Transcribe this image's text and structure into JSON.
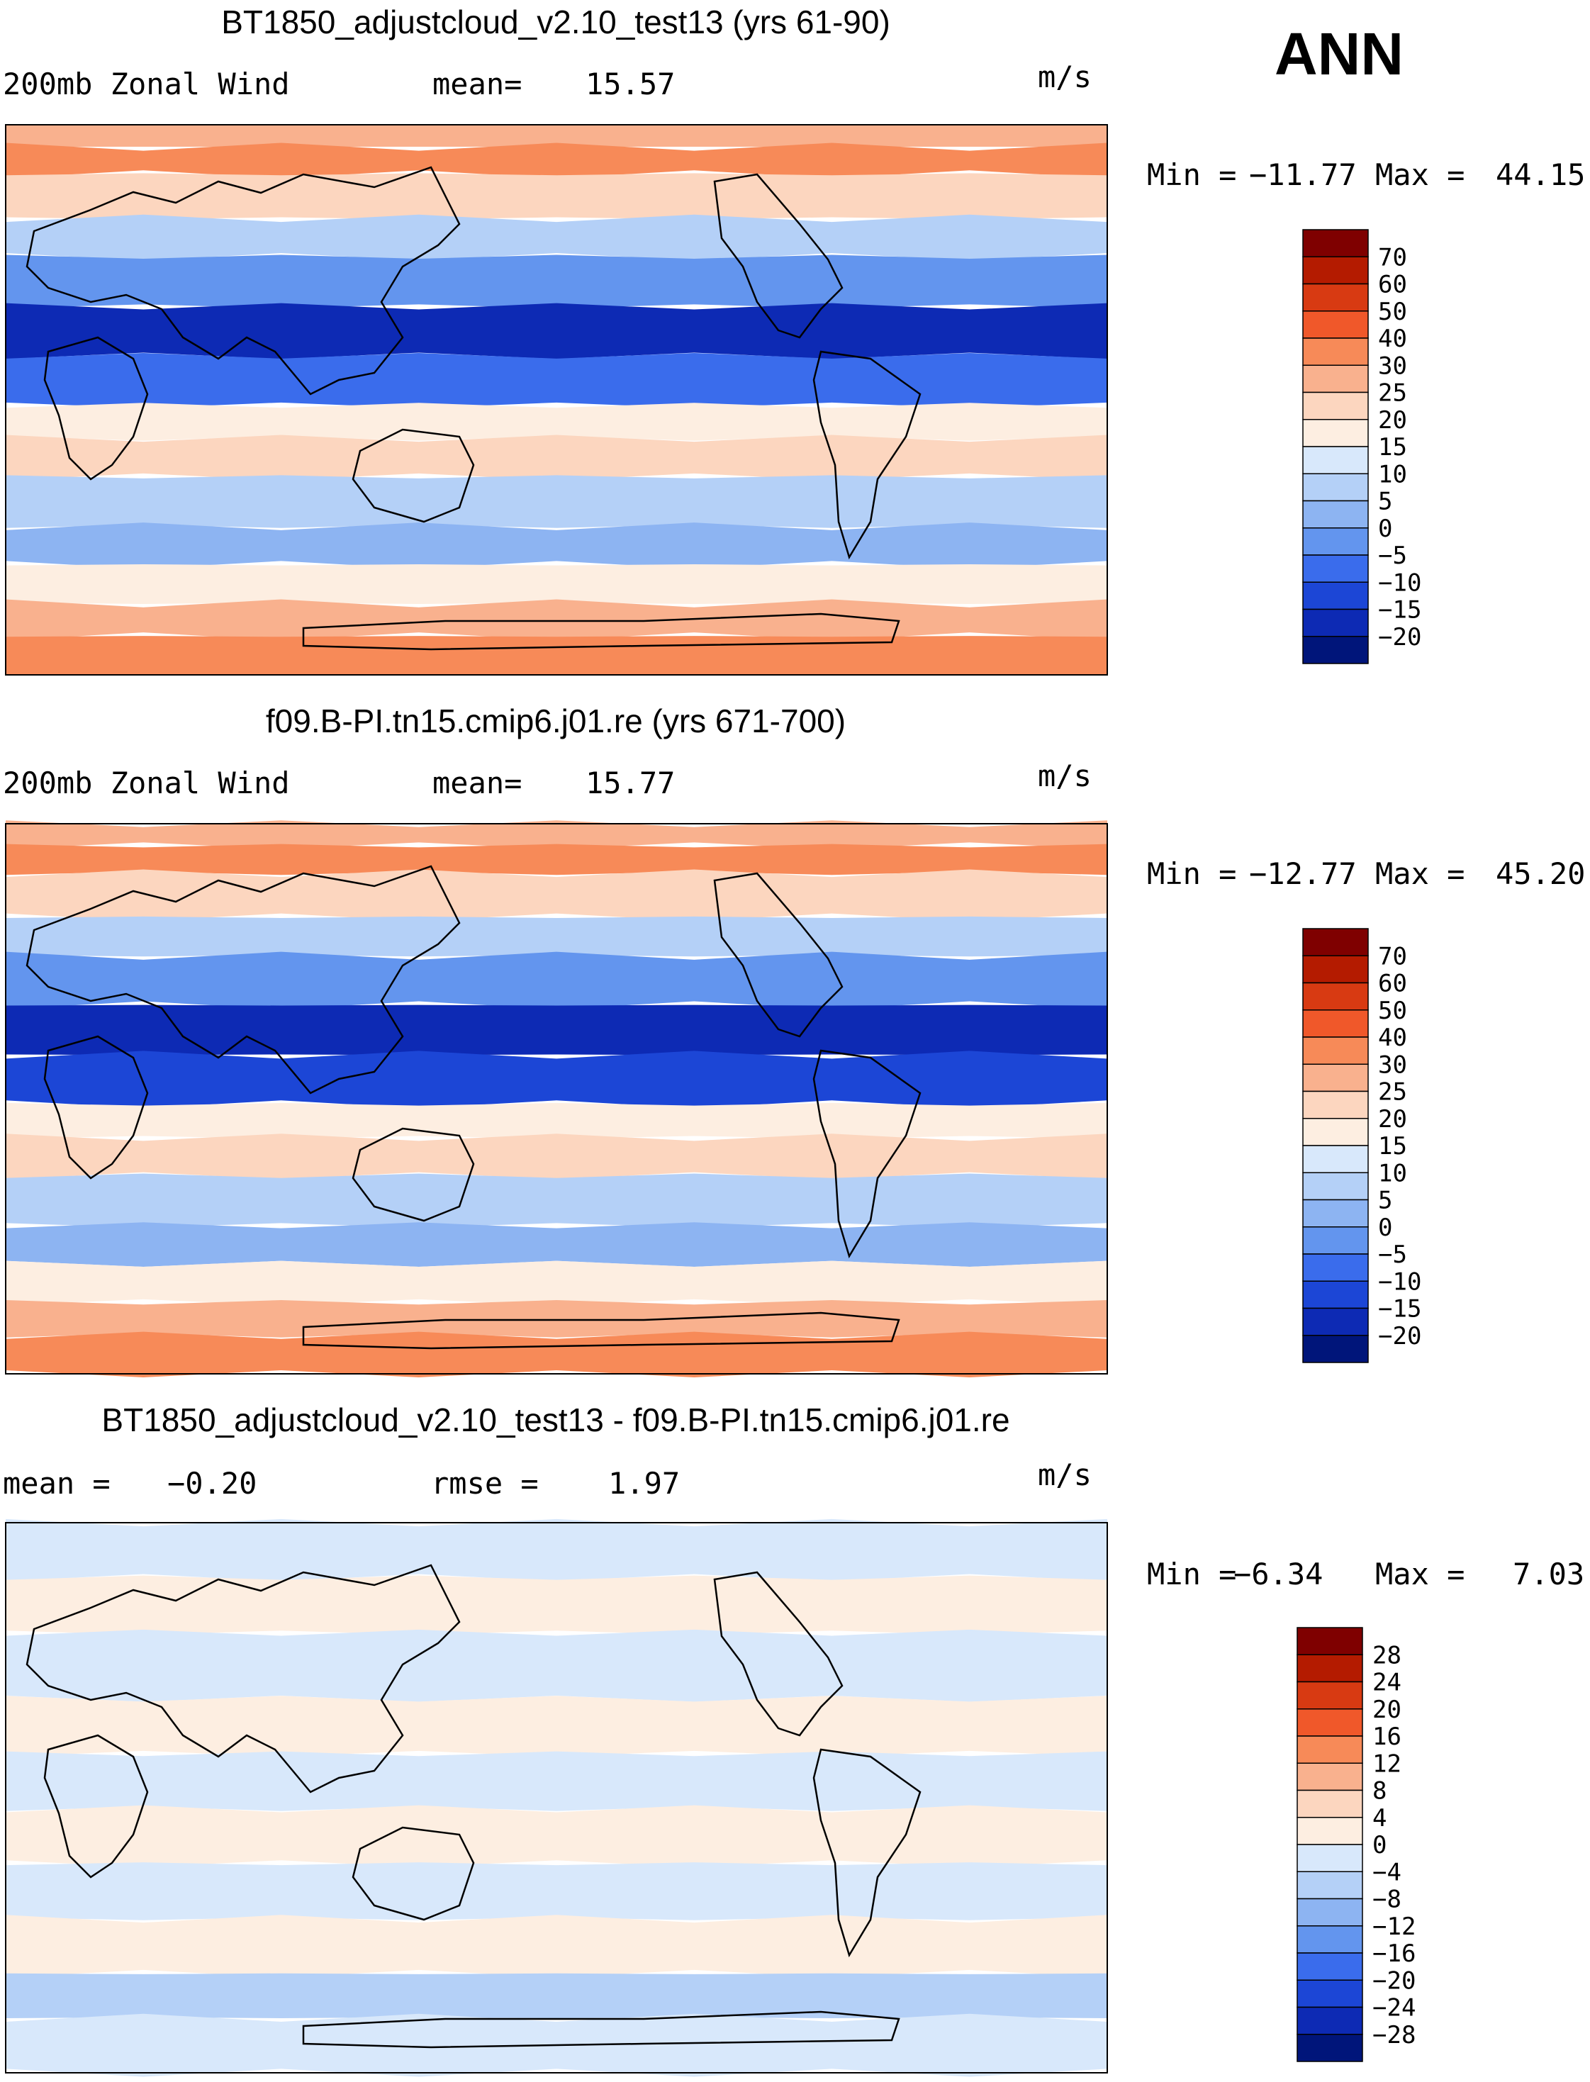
{
  "season": "ANN",
  "chart_data": [
    {
      "type": "heatmap",
      "title": "BT1850_adjustcloud_v2.10_test13 (yrs 61-90)",
      "variable": "200mb Zonal Wind",
      "stat_label": "mean=",
      "stat_value": "15.57",
      "units": "m/s",
      "min_label": "Min =",
      "min_value": "−11.77",
      "max_label": "Max =",
      "max_value": "44.15",
      "levels": [
        "70",
        "60",
        "50",
        "40",
        "30",
        "25",
        "20",
        "15",
        "10",
        "5",
        "0",
        "−5",
        "−10",
        "−15",
        "−20"
      ],
      "colors": [
        "#7f0000",
        "#b41b00",
        "#d83a12",
        "#f0582a",
        "#f78a58",
        "#f9b18e",
        "#fcd6bf",
        "#fdeee1",
        "#d8e8fb",
        "#b4d0f7",
        "#8db4f2",
        "#6395ee",
        "#3a6cec",
        "#1c46d6",
        "#0d2ab4",
        "#00157a"
      ],
      "bands": [
        [
          0,
          5
        ],
        [
          0.04,
          4
        ],
        [
          0.09,
          6
        ],
        [
          0.17,
          9
        ],
        [
          0.24,
          11
        ],
        [
          0.33,
          14
        ],
        [
          0.42,
          12
        ],
        [
          0.51,
          7
        ],
        [
          0.57,
          6
        ],
        [
          0.64,
          9
        ],
        [
          0.73,
          10
        ],
        [
          0.8,
          7
        ],
        [
          0.87,
          5
        ],
        [
          0.93,
          4
        ],
        [
          1,
          3
        ]
      ]
    },
    {
      "type": "heatmap",
      "title": "f09.B-PI.tn15.cmip6.j01.re (yrs 671-700)",
      "variable": "200mb Zonal Wind",
      "stat_label": "mean=",
      "stat_value": "15.77",
      "units": "m/s",
      "min_label": "Min =",
      "min_value": "−12.77",
      "max_label": "Max =",
      "max_value": "45.20",
      "levels": [
        "70",
        "60",
        "50",
        "40",
        "30",
        "25",
        "20",
        "15",
        "10",
        "5",
        "0",
        "−5",
        "−10",
        "−15",
        "−20"
      ],
      "colors": [
        "#7f0000",
        "#b41b00",
        "#d83a12",
        "#f0582a",
        "#f78a58",
        "#f9b18e",
        "#fcd6bf",
        "#fdeee1",
        "#d8e8fb",
        "#b4d0f7",
        "#8db4f2",
        "#6395ee",
        "#3a6cec",
        "#1c46d6",
        "#0d2ab4",
        "#00157a"
      ],
      "bands": [
        [
          0,
          5
        ],
        [
          0.04,
          4
        ],
        [
          0.09,
          6
        ],
        [
          0.17,
          9
        ],
        [
          0.24,
          11
        ],
        [
          0.33,
          14
        ],
        [
          0.42,
          13
        ],
        [
          0.51,
          7
        ],
        [
          0.57,
          6
        ],
        [
          0.64,
          9
        ],
        [
          0.73,
          10
        ],
        [
          0.8,
          7
        ],
        [
          0.87,
          5
        ],
        [
          0.93,
          4
        ],
        [
          1,
          3
        ]
      ]
    },
    {
      "type": "heatmap",
      "title": "BT1850_adjustcloud_v2.10_test13 - f09.B-PI.tn15.cmip6.j01.re",
      "variable": "mean =",
      "variable_value": "−0.20",
      "stat_label": "rmse =",
      "stat_value": "1.97",
      "units": "m/s",
      "min_label": "Min =",
      "min_value": "−6.34",
      "max_label": "Max =",
      "max_value": "7.03",
      "levels": [
        "28",
        "24",
        "20",
        "16",
        "12",
        "8",
        "4",
        "0",
        "−4",
        "−8",
        "−12",
        "−16",
        "−20",
        "−24",
        "−28"
      ],
      "colors": [
        "#7f0000",
        "#b41b00",
        "#d83a12",
        "#f0582a",
        "#f78a58",
        "#f9b18e",
        "#fcd6bf",
        "#fdeee1",
        "#d8e8fb",
        "#b4d0f7",
        "#8db4f2",
        "#6395ee",
        "#3a6cec",
        "#1c46d6",
        "#0d2ab4",
        "#00157a"
      ],
      "bands": [
        [
          0,
          8
        ],
        [
          0.1,
          7
        ],
        [
          0.2,
          8
        ],
        [
          0.32,
          7
        ],
        [
          0.42,
          8
        ],
        [
          0.52,
          7
        ],
        [
          0.62,
          8
        ],
        [
          0.72,
          7
        ],
        [
          0.82,
          9
        ],
        [
          0.9,
          8
        ],
        [
          1,
          8
        ]
      ]
    }
  ]
}
